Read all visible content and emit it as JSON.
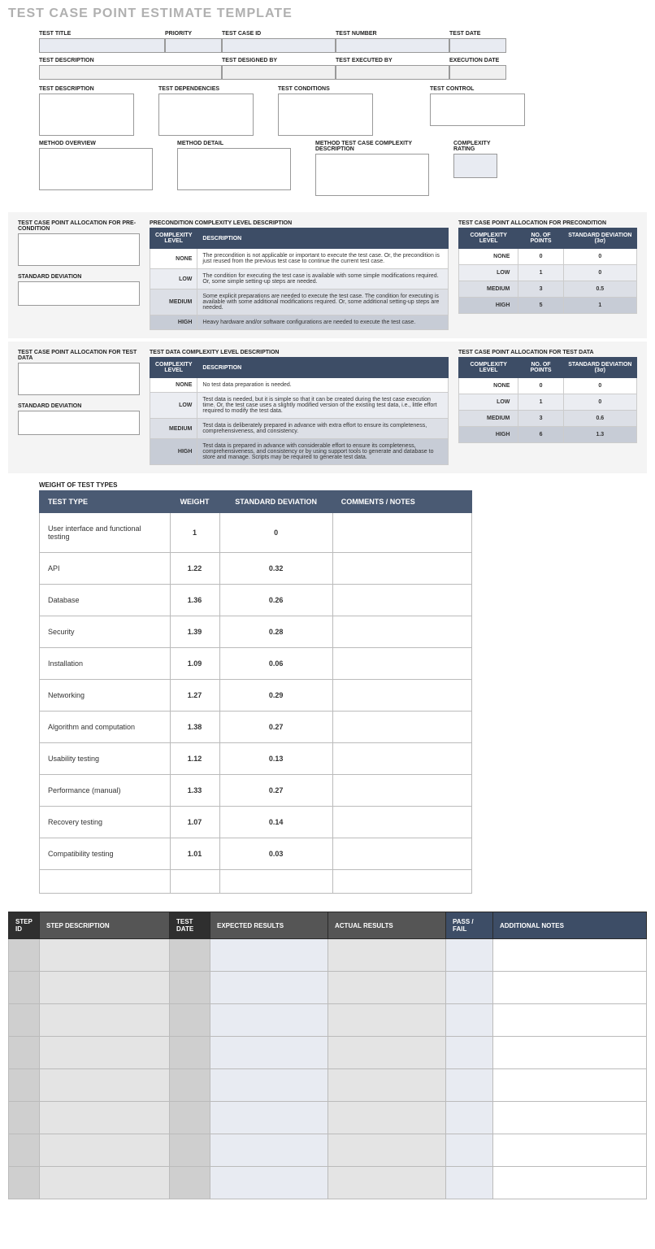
{
  "title": "TEST CASE POINT ESTIMATE TEMPLATE",
  "colors": {
    "title": "#b0b0b0",
    "header_bg": "#3d4d66",
    "header_bg2": "#4a5a73",
    "row_none": "#ffffff",
    "row_low": "#ebedf2",
    "row_med": "#dcdfe6",
    "row_high": "#c7ccd6",
    "light_blue": "#e8ebf2",
    "light_gray": "#f0f0f0",
    "section_bg": "#f4f4f4"
  },
  "header_fields_row1": {
    "test_title": "TEST TITLE",
    "priority": "PRIORITY",
    "test_case_id": "TEST CASE ID",
    "test_number": "TEST NUMBER",
    "test_date": "TEST DATE"
  },
  "header_fields_row2": {
    "test_description": "TEST DESCRIPTION",
    "test_designed_by": "TEST DESIGNED BY",
    "test_executed_by": "TEST EXECUTED BY",
    "execution_date": "EXECUTION DATE"
  },
  "detail_row1": {
    "test_description": "TEST DESCRIPTION",
    "test_dependencies": "TEST DEPENDENCIES",
    "test_conditions": "TEST CONDITIONS",
    "test_control": "TEST CONTROL"
  },
  "detail_row2": {
    "method_overview": "METHOD OVERVIEW",
    "method_detail": "METHOD DETAIL",
    "method_complexity_desc": "METHOD TEST CASE COMPLEXITY DESCRIPTION",
    "complexity_rating": "COMPLEXITY RATING"
  },
  "precond": {
    "alloc_title": "TEST CASE POINT ALLOCATION FOR PRE-CONDITION",
    "std_dev_title": "STANDARD DEVIATION",
    "desc_title": "PRECONDITION COMPLEXITY LEVEL DESCRIPTION",
    "cols": {
      "level": "COMPLEXITY LEVEL",
      "desc": "DESCRIPTION"
    },
    "rows": [
      {
        "level": "NONE",
        "desc": "The precondition is not applicable or important to execute the test case. Or, the precondition is just reused from the previous test case to continue the current test case."
      },
      {
        "level": "LOW",
        "desc": "The condition for executing the test case is available with some simple modifications required. Or, some simple setting-up steps are needed."
      },
      {
        "level": "MEDIUM",
        "desc": "Some explicit preparations are needed to execute the test case. The condition for executing is available with some additional modifications required. Or, some additional setting-up steps are needed."
      },
      {
        "level": "HIGH",
        "desc": "Heavy hardware and/or software configurations are needed to execute the test case."
      }
    ],
    "alloc_table_title": "TEST CASE POINT ALLOCATION FOR PRECONDITION",
    "alloc_cols": {
      "level": "COMPLEXITY LEVEL",
      "points": "NO. OF POINTS",
      "std": "STANDARD DEVIATION (3σ)"
    },
    "alloc_rows": [
      {
        "level": "NONE",
        "points": "0",
        "std": "0"
      },
      {
        "level": "LOW",
        "points": "1",
        "std": "0"
      },
      {
        "level": "MEDIUM",
        "points": "3",
        "std": "0.5"
      },
      {
        "level": "HIGH",
        "points": "5",
        "std": "1"
      }
    ]
  },
  "testdata": {
    "alloc_title": "TEST CASE POINT ALLOCATION FOR TEST DATA",
    "std_dev_title": "STANDARD DEVIATION",
    "desc_title": "TEST DATA COMPLEXITY LEVEL DESCRIPTION",
    "cols": {
      "level": "COMPLEXITY LEVEL",
      "desc": "DESCRIPTION"
    },
    "rows": [
      {
        "level": "NONE",
        "desc": "No test data preparation is needed."
      },
      {
        "level": "LOW",
        "desc": "Test data is needed, but it is simple so that it can be created during the test case execution time. Or, the test case uses a slightly modified version of the existing test data, i.e., little effort required to modify the test data."
      },
      {
        "level": "MEDIUM",
        "desc": "Test data is deliberately prepared in advance with extra effort to ensure its completeness, comprehensiveness, and consistency."
      },
      {
        "level": "HIGH",
        "desc": "Test data is prepared in advance with considerable effort to ensure its completeness, comprehensiveness, and consistency or by using support tools to generate and database to store and manage. Scripts may be required to generate test data."
      }
    ],
    "alloc_table_title": "TEST CASE POINT ALLOCATION FOR TEST DATA",
    "alloc_cols": {
      "level": "COMPLEXITY LEVEL",
      "points": "NO. OF POINTS",
      "std": "STANDARD DEVIATION (3σ)"
    },
    "alloc_rows": [
      {
        "level": "NONE",
        "points": "0",
        "std": "0"
      },
      {
        "level": "LOW",
        "points": "1",
        "std": "0"
      },
      {
        "level": "MEDIUM",
        "points": "3",
        "std": "0.6"
      },
      {
        "level": "HIGH",
        "points": "6",
        "std": "1.3"
      }
    ]
  },
  "weights": {
    "title": "WEIGHT OF TEST TYPES",
    "cols": {
      "type": "TEST TYPE",
      "weight": "WEIGHT",
      "std": "STANDARD DEVIATION",
      "comments": "COMMENTS / NOTES"
    },
    "rows": [
      {
        "type": "User interface and functional testing",
        "weight": "1",
        "std": "0",
        "comments": ""
      },
      {
        "type": "API",
        "weight": "1.22",
        "std": "0.32",
        "comments": ""
      },
      {
        "type": "Database",
        "weight": "1.36",
        "std": "0.26",
        "comments": ""
      },
      {
        "type": "Security",
        "weight": "1.39",
        "std": "0.28",
        "comments": ""
      },
      {
        "type": "Installation",
        "weight": "1.09",
        "std": "0.06",
        "comments": ""
      },
      {
        "type": "Networking",
        "weight": "1.27",
        "std": "0.29",
        "comments": ""
      },
      {
        "type": "Algorithm and computation",
        "weight": "1.38",
        "std": "0.27",
        "comments": ""
      },
      {
        "type": "Usability testing",
        "weight": "1.12",
        "std": "0.13",
        "comments": ""
      },
      {
        "type": "Performance (manual)",
        "weight": "1.33",
        "std": "0.27",
        "comments": ""
      },
      {
        "type": "Recovery testing",
        "weight": "1.07",
        "std": "0.14",
        "comments": ""
      },
      {
        "type": "Compatibility testing",
        "weight": "1.01",
        "std": "0.03",
        "comments": ""
      },
      {
        "type": "",
        "weight": "",
        "std": "",
        "comments": ""
      }
    ],
    "col_widths": [
      "150px",
      "50px",
      "130px",
      "160px"
    ]
  },
  "steps": {
    "cols": {
      "step_id": "STEP ID",
      "step_desc": "STEP DESCRIPTION",
      "test_date": "TEST DATE",
      "expected": "EXPECTED RESULTS",
      "actual": "ACTUAL RESULTS",
      "passfail": "PASS / FAIL",
      "notes": "ADDITIONAL NOTES"
    },
    "header_colors": [
      "#2f2f2f",
      "#555555",
      "#2f2f2f",
      "#555555",
      "#555555",
      "#3d4d66",
      "#3d4d66"
    ],
    "cell_colors": [
      "#cfcfcf",
      "#e4e4e4",
      "#cfcfcf",
      "#e8ebf2",
      "#e4e4e4",
      "#e8ebf2",
      "#ffffff"
    ],
    "col_widths": [
      "38px",
      "160px",
      "50px",
      "145px",
      "145px",
      "58px",
      "auto"
    ],
    "row_count": 8
  }
}
